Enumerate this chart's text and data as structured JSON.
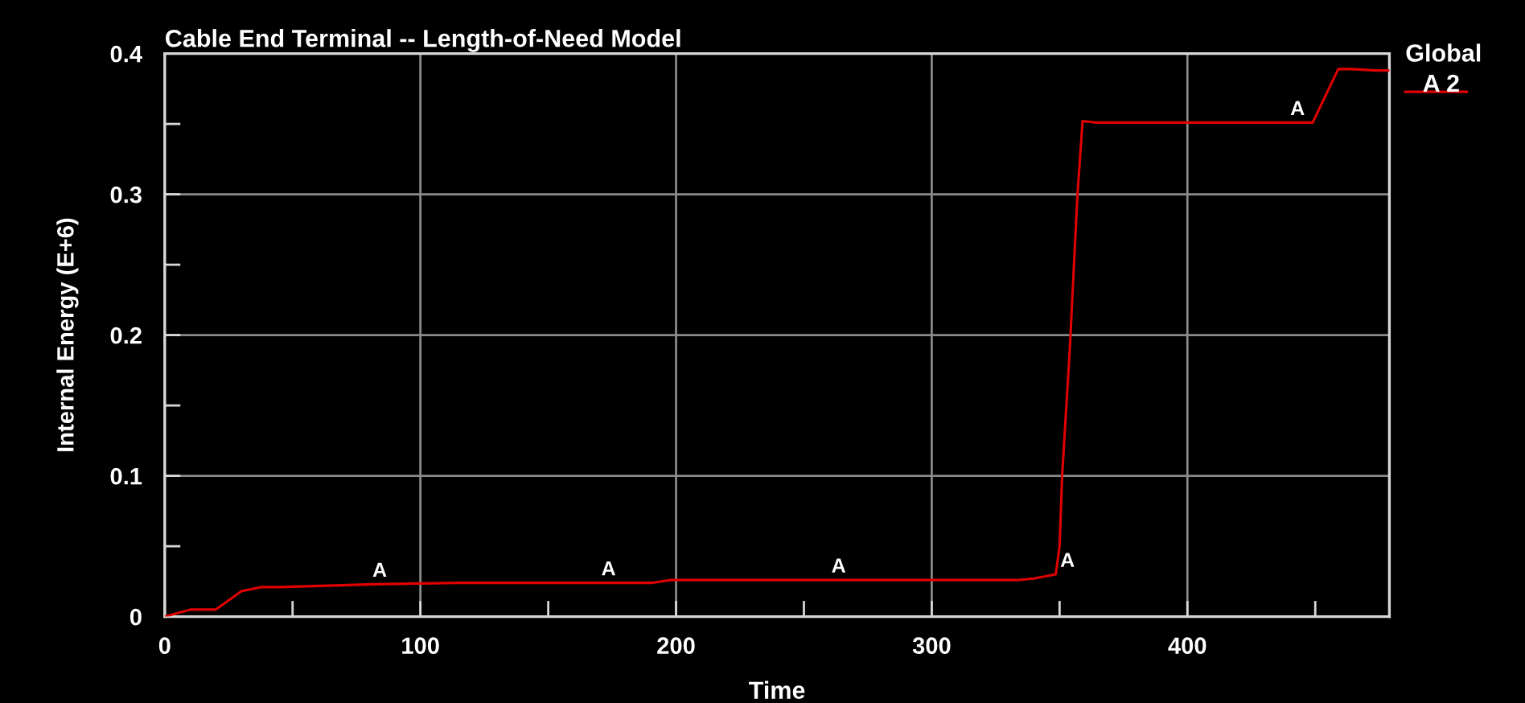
{
  "chart_data": {
    "type": "line",
    "title": "Cable End Terminal -- Length-of-Need Model",
    "xlabel": "Time",
    "ylabel": "Internal Energy (E+6)",
    "legend_title": "Global",
    "x": [
      0,
      10,
      20,
      30,
      38,
      45,
      64,
      82,
      115,
      191,
      198,
      334,
      340,
      348.5,
      350,
      351,
      354,
      357,
      359,
      364,
      449,
      459,
      464,
      474,
      479
    ],
    "series": [
      {
        "name": "A 2",
        "color": "#e00000",
        "values": [
          0,
          0.005,
          0.005,
          0.018,
          0.021,
          0.021,
          0.022,
          0.023,
          0.024,
          0.024,
          0.026,
          0.026,
          0.027,
          0.03,
          0.05,
          0.1,
          0.19,
          0.3,
          0.352,
          0.351,
          0.351,
          0.389,
          0.389,
          0.388,
          0.388
        ]
      }
    ],
    "xlim": [
      0,
      479
    ],
    "ylim": [
      0,
      0.4
    ],
    "xticks": [
      0,
      {
        "value": 50,
        "label": null
      },
      100,
      {
        "value": 150,
        "label": null
      },
      200,
      {
        "value": 250,
        "label": null
      },
      300,
      {
        "value": 350,
        "label": null
      },
      400,
      {
        "value": 450,
        "label": null
      }
    ],
    "yticks": [
      0,
      {
        "value": 0.05,
        "label": null
      },
      0.1,
      {
        "value": 0.15,
        "label": null
      },
      0.2,
      {
        "value": 0.25,
        "label": null
      },
      0.3,
      {
        "value": 0.35,
        "label": null
      },
      0.4
    ],
    "grid": true,
    "legend": "right",
    "line_style": "solid",
    "annotations": [
      {
        "text": "A",
        "x": 79.5,
        "y": 0.023
      },
      {
        "text": "A",
        "x": 169,
        "y": 0.024
      },
      {
        "text": "A",
        "x": 259,
        "y": 0.026
      },
      {
        "text": "A",
        "x": 348.5,
        "y": 0.03
      },
      {
        "text": "A",
        "x": 438.5,
        "y": 0.351
      }
    ]
  }
}
